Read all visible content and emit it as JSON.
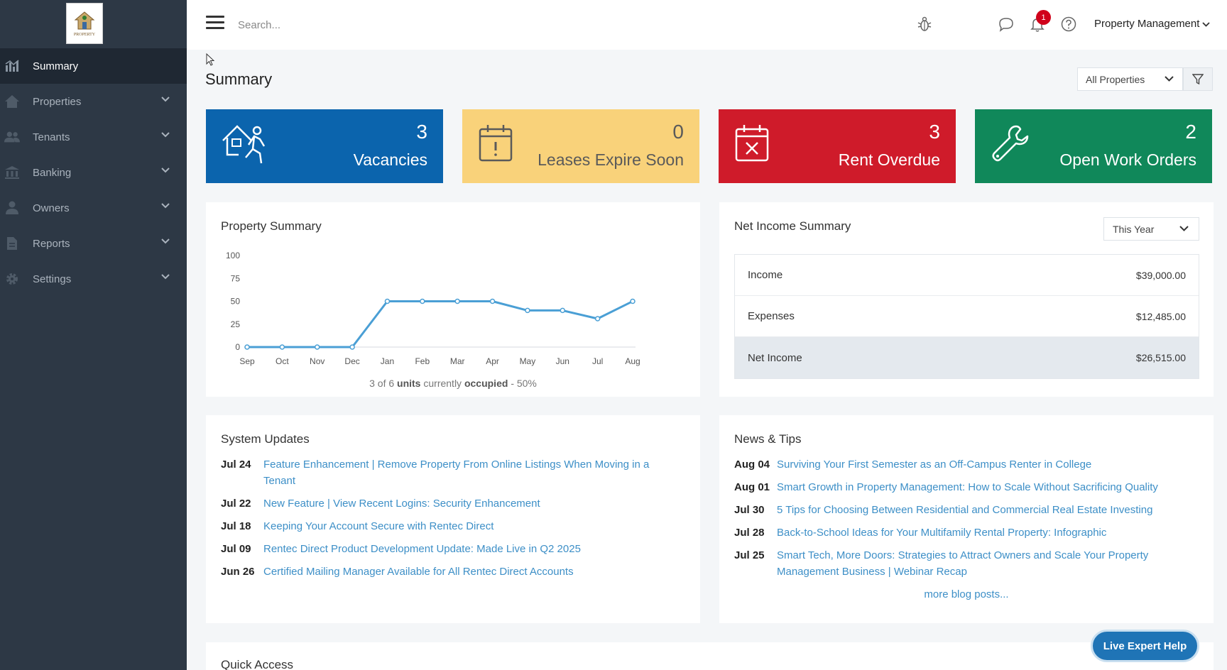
{
  "logo": {
    "text": "PROPERTY"
  },
  "sidebar": {
    "items": [
      {
        "label": "Summary",
        "icon": "bar-chart-icon"
      },
      {
        "label": "Properties",
        "icon": "home-icon"
      },
      {
        "label": "Tenants",
        "icon": "users-icon"
      },
      {
        "label": "Banking",
        "icon": "bank-icon"
      },
      {
        "label": "Owners",
        "icon": "user-icon"
      },
      {
        "label": "Reports",
        "icon": "file-icon"
      },
      {
        "label": "Settings",
        "icon": "gear-icon"
      }
    ]
  },
  "topbar": {
    "search_placeholder": "Search...",
    "notification_count": "1",
    "account_label": "Property Management"
  },
  "page": {
    "title": "Summary",
    "property_filter": "All Properties"
  },
  "stats": [
    {
      "value": "3",
      "label": "Vacancies",
      "color": "#0b64ad"
    },
    {
      "value": "0",
      "label": "Leases Expire Soon",
      "color": "#f9d27a"
    },
    {
      "value": "3",
      "label": "Rent Overdue",
      "color": "#cf1b2a"
    },
    {
      "value": "2",
      "label": "Open Work Orders",
      "color": "#10885a"
    }
  ],
  "property_summary": {
    "title": "Property Summary",
    "occupancy": {
      "count": "3 of 6",
      "units": "units",
      "mid": "currently",
      "occupied": "occupied",
      "suffix": "- 50%"
    }
  },
  "chart_data": {
    "type": "line",
    "categories": [
      "Sep",
      "Oct",
      "Nov",
      "Dec",
      "Jan",
      "Feb",
      "Mar",
      "Apr",
      "May",
      "Jun",
      "Jul",
      "Aug"
    ],
    "values": [
      0,
      0,
      0,
      0,
      50,
      50,
      50,
      50,
      40,
      40,
      31,
      50
    ],
    "ylim": [
      0,
      100
    ],
    "yticks": [
      0,
      25,
      50,
      75,
      100
    ],
    "color": "#4a9fd5"
  },
  "net_income": {
    "title": "Net Income Summary",
    "period": "This Year",
    "rows": [
      {
        "label": "Income",
        "amount": "$39,000.00"
      },
      {
        "label": "Expenses",
        "amount": "$12,485.00"
      },
      {
        "label": "Net Income",
        "amount": "$26,515.00"
      }
    ]
  },
  "system_updates": {
    "title": "System Updates",
    "items": [
      {
        "date": "Jul 24",
        "text": "Feature Enhancement | Remove Property From Online Listings When Moving in a Tenant"
      },
      {
        "date": "Jul 22",
        "text": "New Feature | View Recent Logins: Security Enhancement"
      },
      {
        "date": "Jul 18",
        "text": "Keeping Your Account Secure with Rentec Direct"
      },
      {
        "date": "Jul 09",
        "text": "Rentec Direct Product Development Update: Made Live in Q2 2025"
      },
      {
        "date": "Jun 26",
        "text": "Certified Mailing Manager Available for All Rentec Direct Accounts"
      }
    ]
  },
  "news_tips": {
    "title": "News & Tips",
    "items": [
      {
        "date": "Aug 04",
        "text": "Surviving Your First Semester as an Off-Campus Renter in College"
      },
      {
        "date": "Aug 01",
        "text": "Smart Growth in Property Management: How to Scale Without Sacrificing Quality"
      },
      {
        "date": "Jul 30",
        "text": "5 Tips for Choosing Between Residential and Commercial Real Estate Investing"
      },
      {
        "date": "Jul 28",
        "text": "Back-to-School Ideas for Your Multifamily Rental Property: Infographic"
      },
      {
        "date": "Jul 25",
        "text": "Smart Tech, More Doors: Strategies to Attract Owners and Scale Your Property Management Business | Webinar Recap"
      }
    ],
    "more": "more blog posts..."
  },
  "quick_access": {
    "title": "Quick Access"
  },
  "live_help": "Live Expert Help"
}
